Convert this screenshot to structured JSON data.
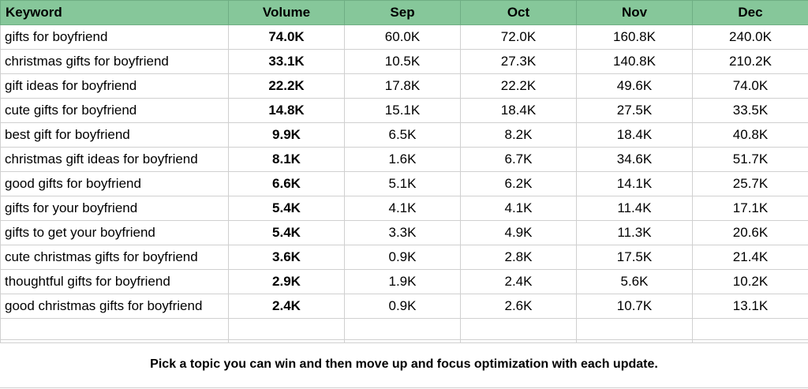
{
  "table": {
    "headers": [
      "Keyword",
      "Volume",
      "Sep",
      "Oct",
      "Nov",
      "Dec"
    ],
    "rows": [
      [
        "gifts for boyfriend",
        "74.0K",
        "60.0K",
        "72.0K",
        "160.8K",
        "240.0K"
      ],
      [
        "christmas gifts for boyfriend",
        "33.1K",
        "10.5K",
        "27.3K",
        "140.8K",
        "210.2K"
      ],
      [
        "gift ideas for boyfriend",
        "22.2K",
        "17.8K",
        "22.2K",
        "49.6K",
        "74.0K"
      ],
      [
        "cute gifts for boyfriend",
        "14.8K",
        "15.1K",
        "18.4K",
        "27.5K",
        "33.5K"
      ],
      [
        "best gift for boyfriend",
        "9.9K",
        "6.5K",
        "8.2K",
        "18.4K",
        "40.8K"
      ],
      [
        "christmas gift ideas for boyfriend",
        "8.1K",
        "1.6K",
        "6.7K",
        "34.6K",
        "51.7K"
      ],
      [
        "good gifts for boyfriend",
        "6.6K",
        "5.1K",
        "6.2K",
        "14.1K",
        "25.7K"
      ],
      [
        "gifts for your boyfriend",
        "5.4K",
        "4.1K",
        "4.1K",
        "11.4K",
        "17.1K"
      ],
      [
        "gifts to get your boyfriend",
        "5.4K",
        "3.3K",
        "4.9K",
        "11.3K",
        "20.6K"
      ],
      [
        "cute christmas gifts for boyfriend",
        "3.6K",
        "0.9K",
        "2.8K",
        "17.5K",
        "21.4K"
      ],
      [
        "thoughtful gifts for boyfriend",
        "2.9K",
        "1.9K",
        "2.4K",
        "5.6K",
        "10.2K"
      ],
      [
        "good christmas gifts for boyfriend",
        "2.4K",
        "0.9K",
        "2.6K",
        "10.7K",
        "13.1K"
      ]
    ]
  },
  "note": "Pick a topic you can win and then move up and focus optimization with each update.",
  "colors": {
    "header_bg": "#86c79a",
    "grid": "#d0d0d0"
  }
}
